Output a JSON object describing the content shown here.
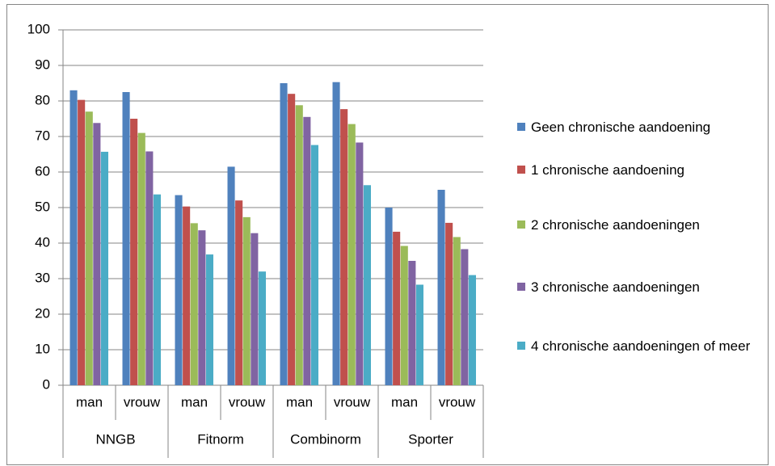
{
  "chart_data": {
    "type": "bar",
    "categories": [
      "man",
      "vrouw",
      "man",
      "vrouw",
      "man",
      "vrouw",
      "man",
      "vrouw"
    ],
    "group_labels": [
      "NNGB",
      "Fitnorm",
      "Combinorm",
      "Sporter"
    ],
    "series": [
      {
        "name": "Geen chronische aandoening",
        "color": "#4f81bd",
        "values": [
          83,
          82.5,
          53.5,
          61.5,
          85,
          85.3,
          50,
          55
        ]
      },
      {
        "name": "1 chronische aandoening",
        "color": "#c0504d",
        "values": [
          80.3,
          75,
          50.3,
          52,
          82,
          77.7,
          43.2,
          45.7
        ]
      },
      {
        "name": "2 chronische aandoeningen",
        "color": "#9bbb59",
        "values": [
          77,
          71,
          45.6,
          47.3,
          78.8,
          73.5,
          39.2,
          41.7
        ]
      },
      {
        "name": "3 chronische aandoeningen",
        "color": "#8064a2",
        "values": [
          73.8,
          65.8,
          43.6,
          42.8,
          75.5,
          68.3,
          35,
          38.3
        ]
      },
      {
        "name": "4 chronische aandoeningen of meer",
        "color": "#4bacc6",
        "values": [
          65.7,
          53.7,
          36.8,
          32,
          67.6,
          56.3,
          28.3,
          31
        ]
      }
    ],
    "ylim": [
      0,
      100
    ],
    "yticks": [
      0,
      10,
      20,
      30,
      40,
      50,
      60,
      70,
      80,
      90,
      100
    ],
    "grid": true
  }
}
